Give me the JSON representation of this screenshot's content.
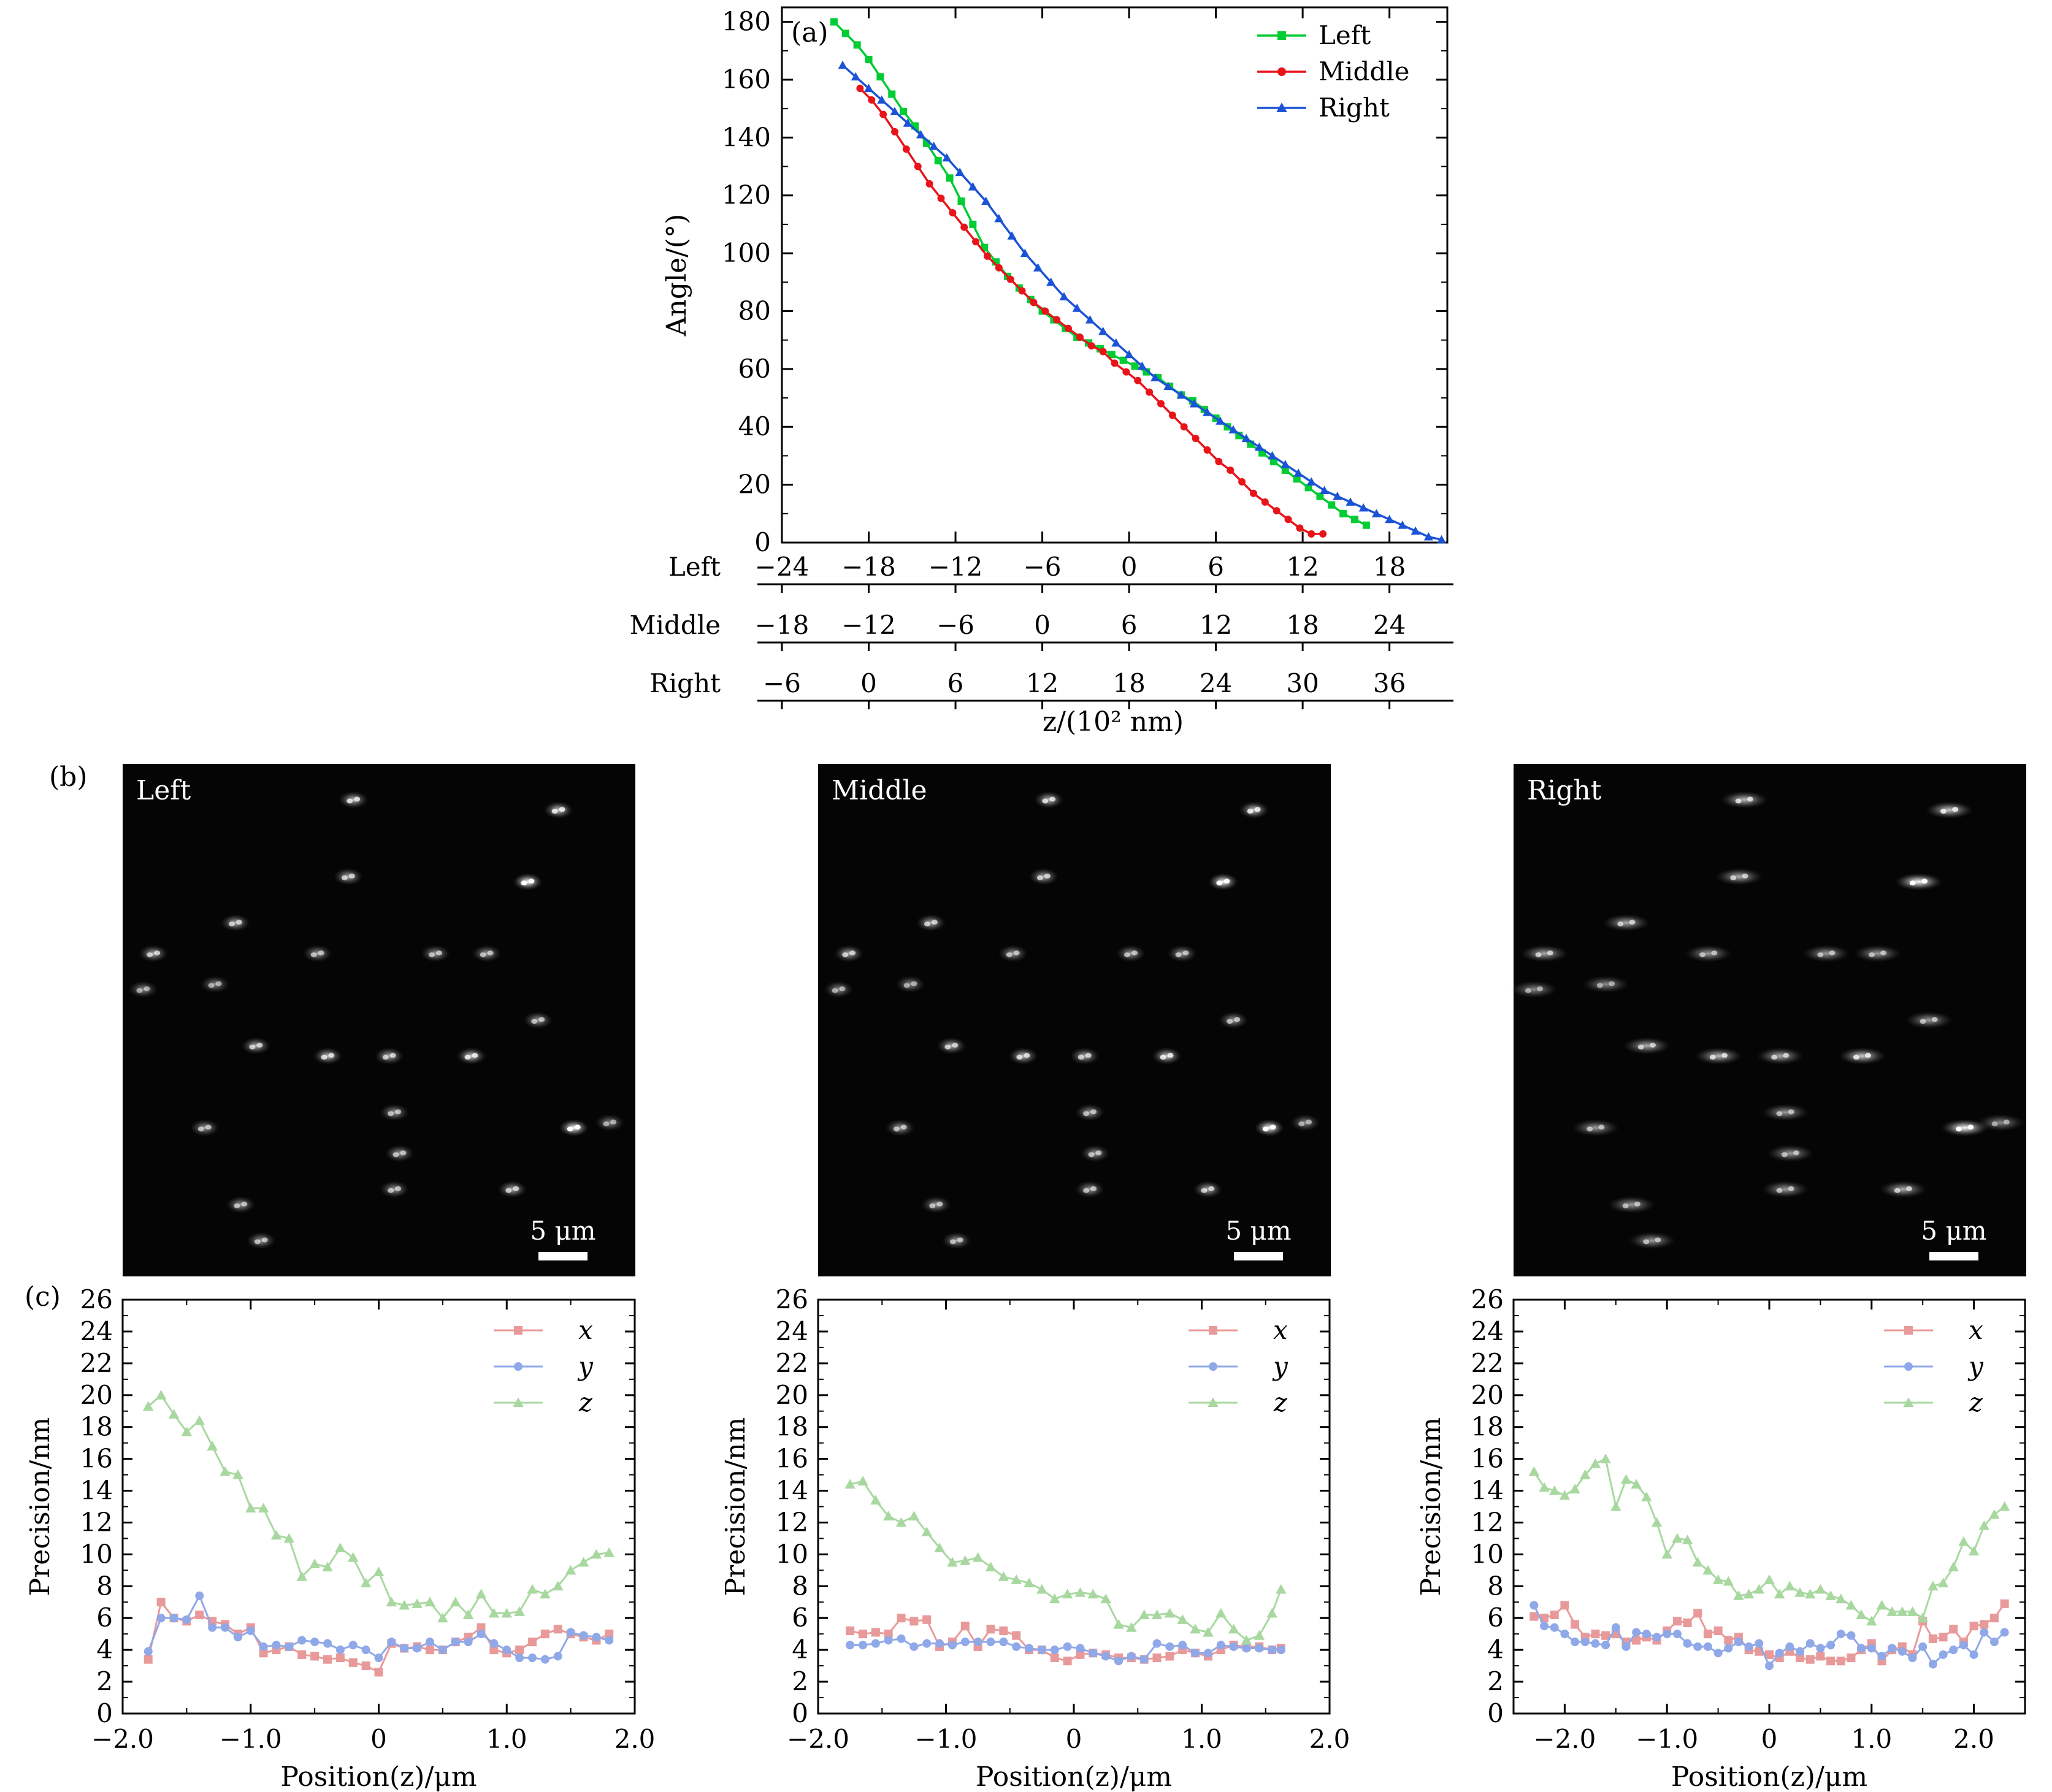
{
  "panel_labels": {
    "a": "(a)",
    "b": "(b)",
    "c": "(c)"
  },
  "chart_data": [
    {
      "type": "line",
      "id": "a",
      "ylabel": "Angle/(°)",
      "xlabel": "z/(10² nm)",
      "ylim": [
        0,
        185
      ],
      "yticks": [
        0,
        20,
        40,
        60,
        80,
        100,
        120,
        140,
        160,
        180
      ],
      "colors": {
        "Left": "#00cc33",
        "Middle": "#e8141a",
        "Right": "#1a53d6"
      },
      "legend": {
        "position": "top-right",
        "entries": [
          "Left",
          "Middle",
          "Right"
        ]
      },
      "secondary_axes": [
        {
          "label": "Left",
          "ticks": [
            "−24",
            "−18",
            "−12",
            "−6",
            "0",
            "6",
            "12",
            "18"
          ],
          "tick_values": [
            -24,
            -18,
            -12,
            -6,
            0,
            6,
            12,
            18
          ]
        },
        {
          "label": "Middle",
          "ticks": [
            "−18",
            "−12",
            "−6",
            "0",
            "6",
            "12",
            "18",
            "24"
          ],
          "tick_values": [
            -18,
            -12,
            -6,
            0,
            6,
            12,
            18,
            24
          ]
        },
        {
          "label": "Right",
          "ticks": [
            "−6",
            "0",
            "6",
            "12",
            "18",
            "24",
            "30",
            "36"
          ],
          "tick_values": [
            -6,
            0,
            6,
            12,
            18,
            24,
            30,
            36
          ]
        }
      ],
      "series": [
        {
          "name": "Left",
          "marker": "square",
          "x": [
            -20.4,
            -19.6,
            -18.8,
            -18.0,
            -17.2,
            -16.4,
            -15.6,
            -14.8,
            -14.0,
            -13.2,
            -12.4,
            -11.6,
            -10.8,
            -10.0,
            -9.2,
            -8.4,
            -7.6,
            -6.8,
            -6.0,
            -5.2,
            -4.4,
            -3.6,
            -2.8,
            -2.0,
            -1.2,
            -0.4,
            0.4,
            1.2,
            2.0,
            2.8,
            3.6,
            4.4,
            5.2,
            6.0,
            6.8,
            7.6,
            8.4,
            9.2,
            10.0,
            10.8,
            11.6,
            12.4,
            13.2,
            14.0,
            14.8,
            15.6,
            16.4
          ],
          "y": [
            180,
            176,
            172,
            167,
            161,
            155,
            149,
            144,
            138,
            132,
            126,
            118,
            110,
            102,
            97,
            92,
            88,
            84,
            80,
            77,
            74,
            71,
            69,
            67,
            65,
            63,
            61,
            59,
            57,
            54,
            51,
            49,
            46,
            43,
            40,
            37,
            34,
            31,
            28,
            25,
            22,
            19,
            16,
            13,
            10,
            8,
            6
          ]
        },
        {
          "name": "Middle",
          "marker": "circle",
          "x": [
            -18.6,
            -17.8,
            -17.0,
            -16.2,
            -15.4,
            -14.6,
            -13.8,
            -13.0,
            -12.2,
            -11.4,
            -10.6,
            -9.8,
            -9.0,
            -8.2,
            -7.4,
            -6.6,
            -5.8,
            -5.0,
            -4.2,
            -3.4,
            -2.6,
            -1.8,
            -1.0,
            -0.2,
            0.6,
            1.4,
            2.2,
            3.0,
            3.8,
            4.6,
            5.4,
            6.2,
            7.0,
            7.8,
            8.6,
            9.4,
            10.2,
            11.0,
            11.8,
            12.6,
            13.4
          ],
          "y": [
            157,
            153,
            148,
            142,
            136,
            130,
            124,
            119,
            114,
            109,
            104,
            99,
            95,
            91,
            87,
            83,
            80,
            77,
            74,
            71,
            68,
            66,
            62,
            59,
            56,
            52,
            48,
            44,
            40,
            36,
            32,
            28,
            25,
            21,
            17,
            14,
            11,
            8,
            5,
            3,
            3
          ]
        },
        {
          "name": "Right",
          "marker": "triangle",
          "x": [
            -19.8,
            -18.9,
            -18.0,
            -17.1,
            -16.2,
            -15.3,
            -14.4,
            -13.5,
            -12.6,
            -11.7,
            -10.8,
            -9.9,
            -9.0,
            -8.1,
            -7.2,
            -6.3,
            -5.4,
            -4.5,
            -3.6,
            -2.7,
            -1.8,
            -0.9,
            0.0,
            0.9,
            1.8,
            2.7,
            3.6,
            4.5,
            5.4,
            6.3,
            7.2,
            8.1,
            9.0,
            9.9,
            10.8,
            11.7,
            12.6,
            13.5,
            14.4,
            15.3,
            16.2,
            17.1,
            18.0,
            18.9,
            19.8,
            20.7,
            21.6
          ],
          "y": [
            165,
            161,
            157,
            153,
            149,
            145,
            141,
            137,
            133,
            128,
            123,
            118,
            112,
            106,
            100,
            95,
            90,
            85,
            81,
            77,
            73,
            69,
            65,
            61,
            57,
            54,
            51,
            48,
            45,
            42,
            39,
            36,
            33,
            30,
            27,
            24,
            21,
            18,
            16,
            14,
            12,
            10,
            8,
            6,
            4,
            2,
            1
          ]
        }
      ]
    },
    {
      "type": "line",
      "id": "c-left",
      "xlabel": "Position(z)/μm",
      "ylabel": "Precision/nm",
      "xlim": [
        -2.0,
        2.0
      ],
      "xticks": [
        -2.0,
        -1.0,
        0,
        1.0,
        2.0
      ],
      "xtick_labels": [
        "−2.0",
        "−1.0",
        "0",
        "1.0",
        "2.0"
      ],
      "ylim": [
        0,
        26
      ],
      "yticks": [
        0,
        2,
        4,
        6,
        8,
        10,
        12,
        14,
        16,
        18,
        20,
        22,
        24,
        26
      ],
      "legend": {
        "position": "top-right",
        "entries": [
          "x",
          "y",
          "z"
        ]
      },
      "colors": {
        "x": "#e89a9a",
        "y": "#8fa8e8",
        "z": "#a8d8a0"
      },
      "x": [
        -1.8,
        -1.7,
        -1.6,
        -1.5,
        -1.4,
        -1.3,
        -1.2,
        -1.1,
        -1.0,
        -0.9,
        -0.8,
        -0.7,
        -0.6,
        -0.5,
        -0.4,
        -0.3,
        -0.2,
        -0.1,
        0.0,
        0.1,
        0.2,
        0.3,
        0.4,
        0.5,
        0.6,
        0.7,
        0.8,
        0.9,
        1.0,
        1.1,
        1.2,
        1.3,
        1.4,
        1.5,
        1.6,
        1.7,
        1.8
      ],
      "series": [
        {
          "name": "x",
          "marker": "square",
          "values": [
            3.4,
            7.0,
            6.0,
            5.8,
            6.2,
            5.8,
            5.6,
            5.0,
            5.4,
            3.8,
            4.0,
            4.2,
            3.7,
            3.6,
            3.4,
            3.5,
            3.2,
            3.0,
            2.6,
            4.4,
            4.1,
            4.2,
            4.0,
            4.0,
            4.5,
            4.8,
            5.4,
            4.0,
            3.8,
            4.0,
            4.5,
            5.0,
            5.3,
            5.0,
            4.8,
            4.6,
            5.0
          ]
        },
        {
          "name": "y",
          "marker": "circle",
          "values": [
            3.9,
            6.0,
            6.0,
            5.9,
            7.4,
            5.4,
            5.4,
            4.8,
            5.2,
            4.2,
            4.3,
            4.2,
            4.6,
            4.5,
            4.4,
            4.0,
            4.3,
            4.0,
            3.5,
            4.5,
            4.1,
            4.1,
            4.5,
            4.0,
            4.5,
            4.5,
            5.0,
            4.4,
            4.0,
            3.5,
            3.5,
            3.4,
            3.6,
            5.1,
            4.9,
            4.8,
            4.6
          ]
        },
        {
          "name": "z",
          "marker": "triangle",
          "values": [
            19.3,
            20.0,
            18.8,
            17.7,
            18.4,
            16.8,
            15.2,
            15.0,
            12.9,
            12.9,
            11.2,
            11.0,
            8.6,
            9.4,
            9.2,
            10.4,
            9.8,
            8.2,
            8.9,
            7.0,
            6.8,
            6.9,
            7.0,
            6.0,
            7.0,
            6.2,
            7.5,
            6.3,
            6.3,
            6.4,
            7.8,
            7.5,
            8.0,
            9.0,
            9.5,
            10.0,
            10.1
          ]
        }
      ]
    },
    {
      "type": "line",
      "id": "c-middle",
      "xlabel": "Position(z)/μm",
      "ylabel": "Precision/nm",
      "xlim": [
        -2.0,
        2.0
      ],
      "xticks": [
        -2.0,
        -1.0,
        0,
        1.0,
        2.0
      ],
      "xtick_labels": [
        "−2.0",
        "−1.0",
        "0",
        "1.0",
        "2.0"
      ],
      "ylim": [
        0,
        26
      ],
      "yticks": [
        0,
        2,
        4,
        6,
        8,
        10,
        12,
        14,
        16,
        18,
        20,
        22,
        24,
        26
      ],
      "legend": {
        "position": "top-right",
        "entries": [
          "x",
          "y",
          "z"
        ]
      },
      "colors": {
        "x": "#e89a9a",
        "y": "#8fa8e8",
        "z": "#a8d8a0"
      },
      "x": [
        -1.75,
        -1.65,
        -1.55,
        -1.45,
        -1.35,
        -1.25,
        -1.15,
        -1.05,
        -0.95,
        -0.85,
        -0.75,
        -0.65,
        -0.55,
        -0.45,
        -0.35,
        -0.25,
        -0.15,
        -0.05,
        0.05,
        0.15,
        0.25,
        0.35,
        0.45,
        0.55,
        0.65,
        0.75,
        0.85,
        0.95,
        1.05,
        1.15,
        1.25,
        1.35,
        1.45,
        1.55,
        1.62
      ],
      "series": [
        {
          "name": "x",
          "marker": "square",
          "values": [
            5.2,
            5.0,
            5.1,
            5.0,
            6.0,
            5.8,
            5.9,
            4.2,
            4.5,
            5.5,
            4.2,
            5.3,
            5.2,
            4.9,
            4.0,
            4.0,
            3.5,
            3.3,
            3.7,
            3.8,
            3.7,
            3.5,
            3.5,
            3.4,
            3.5,
            3.6,
            4.0,
            3.8,
            3.6,
            4.0,
            4.3,
            4.2,
            4.2,
            4.0,
            4.1
          ]
        },
        {
          "name": "y",
          "marker": "circle",
          "values": [
            4.3,
            4.3,
            4.4,
            4.6,
            4.7,
            4.2,
            4.4,
            4.4,
            4.3,
            4.5,
            4.5,
            4.5,
            4.5,
            4.2,
            4.1,
            4.0,
            4.0,
            4.2,
            4.1,
            3.8,
            3.6,
            3.3,
            3.6,
            3.4,
            4.4,
            4.2,
            4.3,
            3.8,
            3.8,
            4.3,
            4.2,
            4.1,
            4.1,
            4.0,
            4.0
          ]
        },
        {
          "name": "z",
          "marker": "triangle",
          "values": [
            14.4,
            14.6,
            13.4,
            12.4,
            12.0,
            12.4,
            11.4,
            10.4,
            9.5,
            9.6,
            9.8,
            9.2,
            8.6,
            8.4,
            8.2,
            7.8,
            7.2,
            7.5,
            7.6,
            7.5,
            7.2,
            5.6,
            5.4,
            6.2,
            6.2,
            6.3,
            5.9,
            5.3,
            5.1,
            6.3,
            5.3,
            4.6,
            4.9,
            6.3,
            7.8
          ]
        }
      ]
    },
    {
      "type": "line",
      "id": "c-right",
      "xlabel": "Position(z)/μm",
      "ylabel": "Precision/nm",
      "xlim": [
        -2.5,
        2.5
      ],
      "xticks": [
        -2.0,
        -1.0,
        0,
        1.0,
        2.0
      ],
      "xtick_labels": [
        "−2.0",
        "−1.0",
        "0",
        "1.0",
        "2.0"
      ],
      "ylim": [
        0,
        26
      ],
      "yticks": [
        0,
        2,
        4,
        6,
        8,
        10,
        12,
        14,
        16,
        18,
        20,
        22,
        24,
        26
      ],
      "legend": {
        "position": "top-right",
        "entries": [
          "x",
          "y",
          "z"
        ]
      },
      "colors": {
        "x": "#e89a9a",
        "y": "#8fa8e8",
        "z": "#a8d8a0"
      },
      "x": [
        -2.3,
        -2.2,
        -2.1,
        -2.0,
        -1.9,
        -1.8,
        -1.7,
        -1.6,
        -1.5,
        -1.4,
        -1.3,
        -1.2,
        -1.1,
        -1.0,
        -0.9,
        -0.8,
        -0.7,
        -0.6,
        -0.5,
        -0.4,
        -0.3,
        -0.2,
        -0.1,
        0.0,
        0.1,
        0.2,
        0.3,
        0.4,
        0.5,
        0.6,
        0.7,
        0.8,
        0.9,
        1.0,
        1.1,
        1.2,
        1.3,
        1.4,
        1.5,
        1.6,
        1.7,
        1.8,
        1.9,
        2.0,
        2.1,
        2.2,
        2.3
      ],
      "series": [
        {
          "name": "x",
          "marker": "square",
          "values": [
            6.1,
            6.0,
            6.2,
            6.8,
            5.6,
            4.8,
            5.0,
            4.9,
            5.0,
            4.5,
            4.6,
            4.8,
            4.6,
            5.2,
            5.8,
            5.7,
            6.3,
            5.0,
            5.2,
            4.6,
            4.8,
            4.0,
            3.9,
            3.7,
            3.5,
            3.9,
            3.5,
            3.4,
            3.6,
            3.3,
            3.3,
            3.5,
            4.0,
            4.4,
            3.3,
            4.0,
            4.2,
            3.7,
            5.8,
            4.7,
            4.8,
            5.3,
            4.5,
            5.5,
            5.6,
            6.0,
            6.9
          ]
        },
        {
          "name": "y",
          "marker": "circle",
          "values": [
            6.8,
            5.5,
            5.4,
            5.0,
            4.5,
            4.5,
            4.4,
            4.3,
            5.4,
            4.2,
            5.1,
            5.0,
            4.8,
            5.0,
            5.0,
            4.4,
            4.2,
            4.2,
            3.8,
            4.1,
            4.5,
            4.2,
            4.4,
            3.0,
            3.8,
            4.2,
            3.9,
            4.4,
            4.1,
            4.3,
            5.0,
            4.9,
            4.1,
            4.1,
            3.6,
            4.1,
            3.9,
            3.5,
            4.2,
            3.1,
            3.7,
            4.0,
            4.3,
            3.7,
            5.1,
            4.5,
            5.1
          ]
        },
        {
          "name": "z",
          "marker": "triangle",
          "values": [
            15.2,
            14.2,
            14.0,
            13.7,
            14.1,
            15.0,
            15.7,
            16.0,
            13.0,
            14.7,
            14.4,
            13.6,
            12.0,
            10.0,
            11.0,
            10.9,
            9.5,
            9.0,
            8.4,
            8.3,
            7.4,
            7.5,
            7.8,
            8.4,
            7.5,
            8.0,
            7.6,
            7.5,
            7.8,
            7.4,
            7.2,
            6.8,
            6.2,
            5.8,
            6.8,
            6.4,
            6.4,
            6.4,
            6.0,
            8.0,
            8.2,
            9.2,
            10.8,
            10.2,
            11.8,
            12.5,
            13.0
          ]
        }
      ]
    }
  ],
  "images": [
    {
      "id": "b-left",
      "label": "Left",
      "scale_bar": "5 μm"
    },
    {
      "id": "b-middle",
      "label": "Middle",
      "scale_bar": "5 μm"
    },
    {
      "id": "b-right",
      "label": "Right",
      "scale_bar": "5 μm"
    }
  ]
}
